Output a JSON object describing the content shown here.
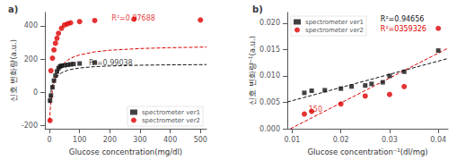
{
  "chart_data": [
    {
      "type": "scatter",
      "title": "a)",
      "xlabel": "Glucose concentration(mg/dl)",
      "ylabel": "신호 변화량(a.u.)",
      "xlim": [
        -15,
        520
      ],
      "ylim": [
        -220,
        480
      ],
      "xticks": [
        0,
        100,
        200,
        300,
        400,
        500
      ],
      "yticks": [
        -200,
        0,
        200,
        400
      ],
      "grid": false,
      "legend": "lower right",
      "series": [
        {
          "name": "spectrometer ver1",
          "color": "#111111",
          "marker": "square",
          "x": [
            2,
            5,
            10,
            15,
            20,
            25,
            30,
            35,
            40,
            50,
            60,
            70,
            80,
            100,
            150
          ],
          "values": [
            -50,
            -20,
            30,
            70,
            100,
            125,
            145,
            155,
            160,
            162,
            165,
            168,
            170,
            173,
            178
          ]
        },
        {
          "name": "spectrometer ver2",
          "color": "#dd0000",
          "marker": "circle",
          "x": [
            2,
            5,
            10,
            15,
            20,
            25,
            30,
            40,
            50,
            60,
            70,
            100,
            150,
            280,
            500
          ],
          "values": [
            -170,
            130,
            205,
            255,
            295,
            325,
            355,
            385,
            405,
            412,
            418,
            425,
            432,
            440,
            435
          ]
        },
        {
          "type": "line",
          "line_style": "dashed",
          "color": "#111111",
          "x": [
            0.1,
            1,
            2,
            4,
            6,
            8,
            10,
            15,
            20,
            30,
            40,
            60,
            80,
            100,
            150,
            200,
            300,
            400,
            520
          ],
          "values": [
            -66.02,
            -49.54,
            -33.71,
            -8,
            12,
            28,
            41.09,
            65.33,
            82,
            103.43,
            116.62,
            132,
            140.7,
            146.29,
            154.22,
            158.42,
            162.77,
            165.01,
            166.59
          ]
        },
        {
          "type": "line",
          "line_style": "dashed",
          "color": "#dd0000",
          "x": [
            0.1,
            1,
            2,
            4,
            6,
            8,
            10,
            15,
            20,
            30,
            40,
            60,
            80,
            100,
            150,
            200,
            300,
            400,
            520
          ],
          "values": [
            -171.95,
            -146.25,
            -120.88,
            -78.16,
            -43.57,
            -15,
            9,
            55,
            87.86,
            131.67,
            159.55,
            193,
            212.37,
            225,
            243.18,
            252.91,
            263.1,
            268.37,
            272.1
          ]
        }
      ],
      "annotations": [
        {
          "text": "R²=0.99038",
          "x": 125,
          "y": 148,
          "color": "#111111"
        },
        {
          "text": "R²=0.97688",
          "x": 200,
          "y": 418,
          "color": "#dd0000"
        }
      ]
    },
    {
      "type": "scatter",
      "title": "b)",
      "xlabel": "Glucose concentration⁻¹(dl/mg)",
      "ylabel": "신호 변화량⁻¹(a.u.)",
      "xlim": [
        0.009,
        0.042
      ],
      "ylim": [
        0.0,
        0.022
      ],
      "xticks": [
        0.01,
        0.02,
        0.03,
        0.04
      ],
      "yticks": [
        {
          "value": 0,
          "label": "0.000"
        },
        {
          "value": 0.005,
          "label": "0.005"
        },
        {
          "value": 0.01,
          "label": "0.010"
        },
        {
          "value": 0.015,
          "label": "0.015"
        },
        {
          "value": 0.02,
          "label": "0.020"
        }
      ],
      "grid": false,
      "legend": "upper left",
      "series": [
        {
          "name": "spectrometer ver1",
          "color": "#111111",
          "marker": "square",
          "x": [
            0.0125,
            0.014,
            0.0167,
            0.02,
            0.0222,
            0.025,
            0.0263,
            0.0286,
            0.03,
            0.033,
            0.04
          ],
          "values": [
            0.0068,
            0.0072,
            0.0073,
            0.0076,
            0.008,
            0.0082,
            0.0085,
            0.0088,
            0.01,
            0.0108,
            0.0148
          ]
        },
        {
          "name": "spectrometer ver2",
          "color": "#dd0000",
          "marker": "circle",
          "x": [
            0.0125,
            0.014,
            0.02,
            0.025,
            0.03,
            0.033,
            0.04
          ],
          "values": [
            0.0028,
            0.0033,
            0.0047,
            0.0062,
            0.0065,
            0.008,
            0.019
          ]
        },
        {
          "type": "line",
          "line_style": "dashed",
          "color": "#111111",
          "x": [
            0.009,
            0.042
          ],
          "values": [
            0.005067,
            0.013305
          ]
        },
        {
          "type": "line",
          "line_style": "dashed",
          "color": "#dd0000",
          "x": [
            0.0096153,
            0.042
          ],
          "values": [
            0,
            0.0152569
          ]
        }
      ],
      "annotations": [
        {
          "text": "R²=0.94656",
          "color": "#111111"
        },
        {
          "text": "R²=0359326",
          "color": "#dd0000"
        },
        {
          "text": "150",
          "x": 0.013,
          "y": 0.0028,
          "color": "#dd0000"
        }
      ]
    }
  ]
}
